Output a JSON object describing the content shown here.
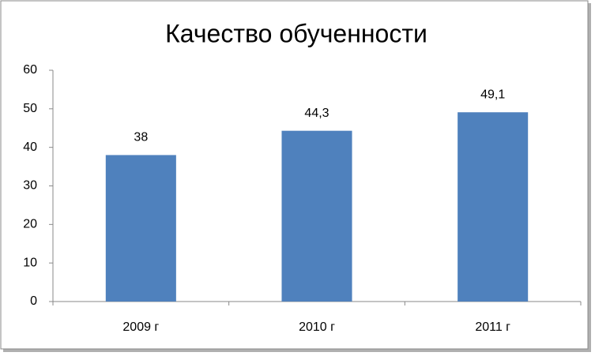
{
  "chart_data": {
    "type": "bar",
    "title": "Качество обученности",
    "categories": [
      "2009 г",
      "2010 г",
      "2011 г"
    ],
    "values": [
      38,
      44.3,
      49.1
    ],
    "value_labels": [
      "38",
      "44,3",
      "49,1"
    ],
    "color": "#4f81bd",
    "ylim": [
      0,
      60
    ],
    "yticks": [
      0,
      10,
      20,
      30,
      40,
      50,
      60
    ],
    "grid": false
  }
}
